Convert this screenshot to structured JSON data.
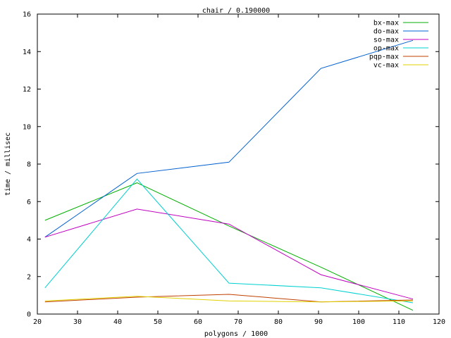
{
  "chart_data": {
    "type": "line",
    "title": "chair / 0.190000",
    "xlabel": "polygons / 1000",
    "ylabel": "time / millisec",
    "xlim": [
      20,
      120
    ],
    "ylim": [
      0,
      16
    ],
    "xticks": [
      20,
      30,
      40,
      50,
      60,
      70,
      80,
      90,
      100,
      110,
      120
    ],
    "yticks": [
      0,
      2,
      4,
      6,
      8,
      10,
      12,
      14,
      16
    ],
    "grid": false,
    "legend_position": "top-right",
    "x": [
      21.9,
      44.8,
      67.7,
      90.6,
      113.5
    ],
    "series": [
      {
        "name": "bx-max",
        "color": "#00b000",
        "values": [
          5.0,
          7.0,
          4.7,
          2.5,
          0.2
        ]
      },
      {
        "name": "do-max",
        "color": "#0060d0",
        "values": [
          4.1,
          7.5,
          8.1,
          13.1,
          14.6
        ]
      },
      {
        "name": "so-max",
        "color": "#c000c0",
        "values": [
          4.1,
          5.6,
          4.8,
          2.1,
          0.8
        ]
      },
      {
        "name": "op-max",
        "color": "#00d0d0",
        "values": [
          1.4,
          7.2,
          1.65,
          1.4,
          0.6
        ]
      },
      {
        "name": "pqp-max",
        "color": "#c04000",
        "values": [
          0.65,
          0.9,
          1.05,
          0.65,
          0.75
        ]
      },
      {
        "name": "vc-max",
        "color": "#e0d000",
        "values": [
          0.7,
          0.95,
          0.7,
          0.65,
          0.7
        ]
      }
    ]
  }
}
